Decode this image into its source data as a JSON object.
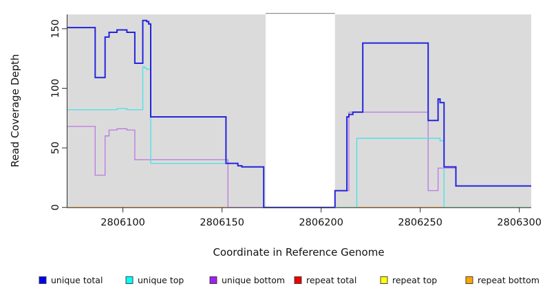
{
  "chart_data": {
    "type": "line",
    "subtype": "step",
    "title": "",
    "xlabel": "Coordinate in Reference Genome",
    "ylabel": "Read Coverage Depth",
    "x_domain": [
      2806072,
      2806306
    ],
    "y_domain": [
      0,
      162
    ],
    "x_ticks": [
      2806100,
      2806150,
      2806200,
      2806250,
      2806300
    ],
    "y_ticks": [
      0,
      50,
      100,
      150
    ],
    "grid": false,
    "plot_bg_color": "#dbdbdb",
    "axis_color": "#2b2b2b",
    "gap_band": {
      "x0": 2806172,
      "x1": 2806207,
      "color": "#ffffff",
      "cap_color": "#909090"
    },
    "zero_overlap_color": "#8fd98f",
    "zero_overlap_segments": [
      {
        "x0": 2806207,
        "x1": 2806218
      },
      {
        "x0": 2806262,
        "x1": 2806306
      }
    ],
    "series": [
      {
        "name": "repeat total",
        "slug": "repeat-total",
        "color": "#dd2222",
        "legend_color": "#ee0000",
        "width": 1.3,
        "points": [
          [
            2806072,
            0
          ]
        ]
      },
      {
        "name": "repeat top",
        "slug": "repeat-top",
        "color": "#e8e833",
        "legend_color": "#ffff00",
        "width": 1.3,
        "points": [
          [
            2806072,
            0
          ]
        ]
      },
      {
        "name": "repeat bottom",
        "slug": "repeat-bottom",
        "color": "#ff9d26",
        "legend_color": "#ffa500",
        "width": 1.3,
        "points": [
          [
            2806072,
            0
          ]
        ]
      },
      {
        "name": "unique bottom",
        "slug": "unique-bottom",
        "color": "#bb77e0",
        "legend_color": "#a020f0",
        "width": 1.3,
        "points": [
          [
            2806072,
            68
          ],
          [
            2806086,
            27
          ],
          [
            2806091,
            60
          ],
          [
            2806093,
            65
          ],
          [
            2806097,
            66
          ],
          [
            2806102,
            65
          ],
          [
            2806106,
            40
          ],
          [
            2806153,
            0
          ],
          [
            2806207,
            14
          ],
          [
            2806214,
            80
          ],
          [
            2806254,
            14
          ],
          [
            2806259,
            33
          ],
          [
            2806268,
            18
          ]
        ]
      },
      {
        "name": "unique top",
        "slug": "unique-top",
        "color": "#45e2e8",
        "legend_color": "#00ffff",
        "width": 1.3,
        "points": [
          [
            2806072,
            82
          ],
          [
            2806097,
            83
          ],
          [
            2806102,
            82
          ],
          [
            2806110,
            118
          ],
          [
            2806111,
            117
          ],
          [
            2806112,
            116
          ],
          [
            2806114,
            37
          ],
          [
            2806158,
            35
          ],
          [
            2806160,
            34
          ],
          [
            2806171,
            0
          ],
          [
            2806218,
            58
          ],
          [
            2806260,
            56
          ],
          [
            2806262,
            0
          ]
        ]
      },
      {
        "name": "unique total",
        "slug": "unique-total",
        "color": "#2323dd",
        "legend_color": "#0000ee",
        "width": 2,
        "points": [
          [
            2806072,
            151
          ],
          [
            2806086,
            109
          ],
          [
            2806091,
            143
          ],
          [
            2806093,
            147
          ],
          [
            2806097,
            149
          ],
          [
            2806102,
            147
          ],
          [
            2806106,
            121
          ],
          [
            2806110,
            157
          ],
          [
            2806112,
            156
          ],
          [
            2806113,
            154
          ],
          [
            2806114,
            76
          ],
          [
            2806152,
            37
          ],
          [
            2806158,
            35
          ],
          [
            2806160,
            34
          ],
          [
            2806171,
            0
          ],
          [
            2806207,
            14
          ],
          [
            2806213,
            76
          ],
          [
            2806214,
            78
          ],
          [
            2806216,
            80
          ],
          [
            2806221,
            138
          ],
          [
            2806254,
            73
          ],
          [
            2806259,
            91
          ],
          [
            2806260,
            88
          ],
          [
            2806262,
            34
          ],
          [
            2806268,
            18
          ]
        ]
      }
    ],
    "legend": [
      {
        "label": "unique total",
        "slug": "unique-total",
        "color": "#0000ee"
      },
      {
        "label": "unique top",
        "slug": "unique-top",
        "color": "#00ffff"
      },
      {
        "label": "unique bottom",
        "slug": "unique-bottom",
        "color": "#a020f0"
      },
      {
        "label": "repeat total",
        "slug": "repeat-total",
        "color": "#ee0000"
      },
      {
        "label": "repeat top",
        "slug": "repeat-top",
        "color": "#ffff00"
      },
      {
        "label": "repeat bottom",
        "slug": "repeat-bottom",
        "color": "#ffa500"
      }
    ]
  }
}
